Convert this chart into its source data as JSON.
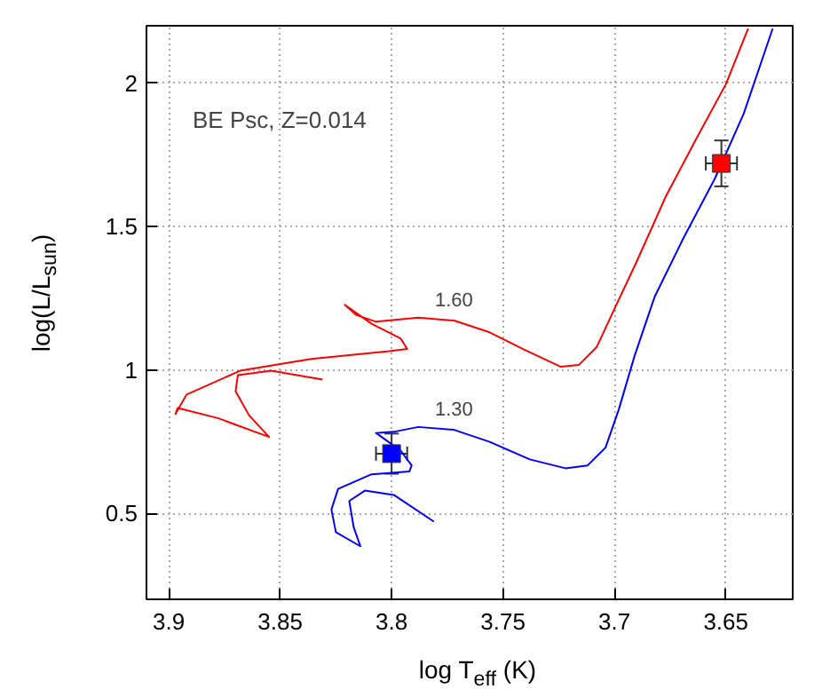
{
  "chart_data": {
    "type": "line",
    "xlabel": "log T$_{eff}$ (K)",
    "ylabel": "log(L/L$_{sun}$)",
    "annotations": [
      "BE Psc, Z=0.014"
    ],
    "xlim": [
      3.91,
      3.62
    ],
    "ylim": [
      0.2,
      2.2
    ],
    "xticks": [
      3.9,
      3.85,
      3.8,
      3.75,
      3.7,
      3.65
    ],
    "yticks": [
      0.5,
      1,
      1.5,
      2
    ],
    "grid": true,
    "series": [
      {
        "name": "1.60",
        "color": "#ff0000",
        "x": [
          3.831,
          3.854,
          3.869,
          3.87,
          3.864,
          3.855,
          3.878,
          3.896,
          3.897,
          3.892,
          3.868,
          3.836,
          3.801,
          3.793,
          3.796,
          3.809,
          3.821,
          3.816,
          3.807,
          3.788,
          3.772,
          3.756,
          3.74,
          3.724,
          3.716,
          3.708,
          3.7,
          3.69,
          3.677,
          3.663,
          3.65,
          3.64
        ],
        "values": [
          0.966,
          0.997,
          0.982,
          0.925,
          0.842,
          0.766,
          0.832,
          0.867,
          0.846,
          0.914,
          0.997,
          1.038,
          1.065,
          1.073,
          1.11,
          1.161,
          1.227,
          1.192,
          1.168,
          1.182,
          1.172,
          1.131,
          1.069,
          1.011,
          1.017,
          1.079,
          1.213,
          1.378,
          1.604,
          1.81,
          1.996,
          2.19
        ]
      },
      {
        "name": "1.30",
        "color": "#0000ff",
        "x": [
          3.781,
          3.799,
          3.812,
          3.819,
          3.817,
          3.814,
          3.825,
          3.827,
          3.824,
          3.809,
          3.792,
          3.791,
          3.796,
          3.807,
          3.799,
          3.788,
          3.772,
          3.756,
          3.738,
          3.722,
          3.712,
          3.704,
          3.698,
          3.691,
          3.682,
          3.669,
          3.655,
          3.642,
          3.629
        ],
        "values": [
          0.471,
          0.564,
          0.579,
          0.543,
          0.451,
          0.385,
          0.434,
          0.513,
          0.585,
          0.636,
          0.646,
          0.667,
          0.719,
          0.78,
          0.784,
          0.801,
          0.791,
          0.749,
          0.688,
          0.657,
          0.667,
          0.729,
          0.863,
          1.048,
          1.254,
          1.46,
          1.666,
          1.893,
          2.19
        ]
      },
      {
        "type": "scatter",
        "marker": "square",
        "color": "#ff0000",
        "x": [
          3.652
        ],
        "values": [
          1.72
        ],
        "errors": [
          0.08
        ],
        "xerrors": [
          0.007
        ]
      },
      {
        "type": "scatter",
        "marker": "square",
        "color": "#0000ff",
        "x": [
          3.8
        ],
        "values": [
          0.708
        ],
        "errors": [
          0.07
        ],
        "xerrors": [
          0.007
        ]
      }
    ]
  }
}
